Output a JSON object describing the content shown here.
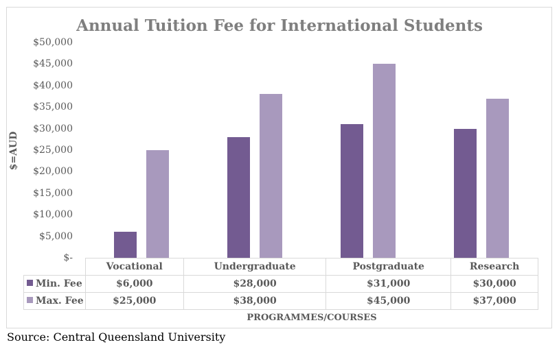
{
  "chart_data": {
    "type": "bar",
    "title": "Annual Tuition Fee for International Students",
    "xlabel": "PROGRAMMES/COURSES",
    "ylabel": "$=AUD",
    "categories": [
      "Vocational",
      "Undergraduate",
      "Postgraduate",
      "Research"
    ],
    "series": [
      {
        "name": "Min. Fee",
        "values": [
          6000,
          28000,
          31000,
          30000
        ],
        "color": "#735b91"
      },
      {
        "name": "Max. Fee",
        "values": [
          25000,
          38000,
          45000,
          37000
        ],
        "color": "#a899bd"
      }
    ],
    "ylim": [
      0,
      50000
    ],
    "yticks": [
      "$-",
      "$5,000",
      "$10,000",
      "$15,000",
      "$20,000",
      "$25,000",
      "$30,000",
      "$35,000",
      "$40,000",
      "$45,000",
      "$50,000"
    ],
    "grid": false,
    "legend_position": "data-table",
    "data_table": {
      "rows": [
        {
          "label": "Min. Fee",
          "cells": [
            "$6,000",
            "$28,000",
            "$31,000",
            "$30,000"
          ]
        },
        {
          "label": "Max. Fee",
          "cells": [
            "$25,000",
            "$38,000",
            "$45,000",
            "$37,000"
          ]
        }
      ]
    }
  },
  "source": "Source: Central Queensland University"
}
